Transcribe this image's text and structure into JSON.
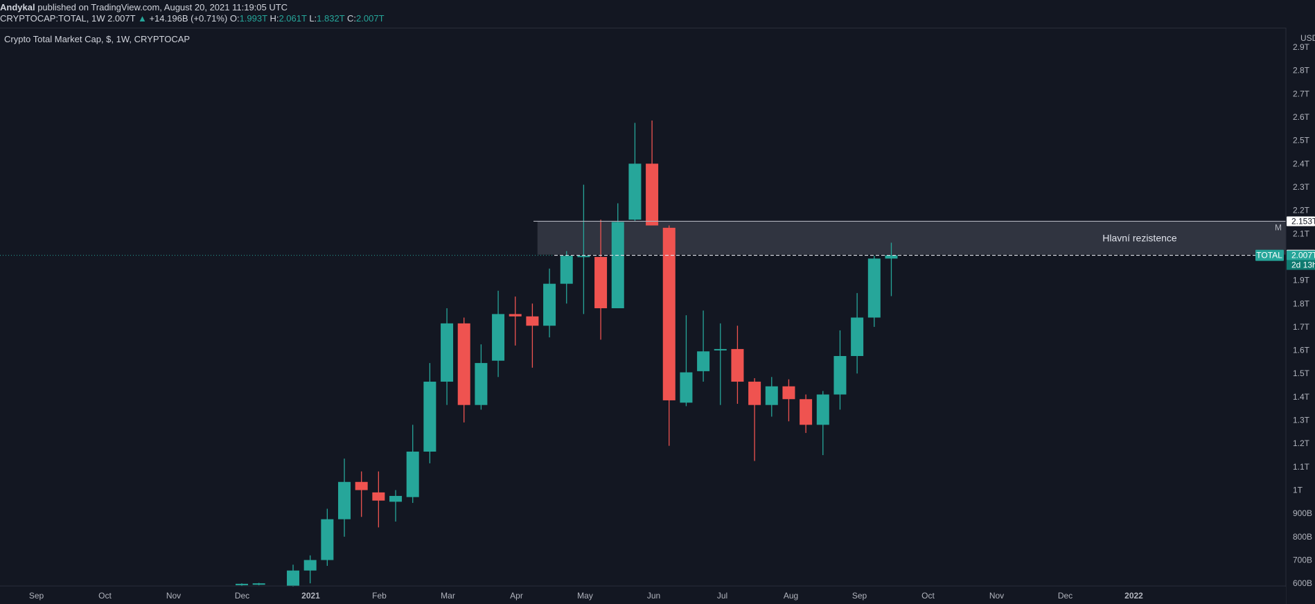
{
  "header": {
    "author": "Andykal",
    "published_text": "published on TradingView.com, August 20, 2021 11:19:05 UTC",
    "symbol": "CRYPTOCAP:TOTAL, 1W",
    "last_price": "2.007T",
    "change_arrow": "▲",
    "change": "+14.196B (+0.71%)",
    "o_label": "O:",
    "o_value": "1.993T",
    "h_label": "H:",
    "h_value": "2.061T",
    "l_label": "L:",
    "l_value": "1.832T",
    "c_label": "C:",
    "c_value": "2.007T"
  },
  "chart_data": {
    "type": "candlestick",
    "title": "Crypto Total Market Cap, $, 1W, CRYPTOCAP",
    "currency": "USD",
    "x_ticks": [
      "Sep",
      "Oct",
      "Nov",
      "Dec",
      "2021",
      "Feb",
      "Mar",
      "Apr",
      "May",
      "Jun",
      "Jul",
      "Aug",
      "Sep",
      "Oct",
      "Nov",
      "Dec",
      "2022"
    ],
    "y_ticks": [
      "2.9T",
      "2.8T",
      "2.7T",
      "2.6T",
      "2.5T",
      "2.4T",
      "2.3T",
      "2.2T",
      "2.1T",
      "1.9T",
      "1.8T",
      "1.7T",
      "1.6T",
      "1.5T",
      "1.4T",
      "1.3T",
      "1.2T",
      "1.1T",
      "1T",
      "900B",
      "800B",
      "700B",
      "600B"
    ],
    "y_tick_values": [
      2.9,
      2.8,
      2.7,
      2.6,
      2.5,
      2.4,
      2.3,
      2.2,
      2.1,
      1.9,
      1.8,
      1.7,
      1.6,
      1.5,
      1.4,
      1.3,
      1.2,
      1.1,
      1.0,
      0.9,
      0.8,
      0.7,
      0.6
    ],
    "y_unit": "trillion USD",
    "ylim": [
      0.58,
      2.92
    ],
    "candles": [
      {
        "week_index": 13,
        "o": 0.595,
        "h": 0.6,
        "l": 0.59,
        "c": 0.598
      },
      {
        "week_index": 14,
        "o": 0.598,
        "h": 0.602,
        "l": 0.592,
        "c": 0.6
      },
      {
        "week_index": 16,
        "o": 0.59,
        "h": 0.68,
        "l": 0.58,
        "c": 0.655
      },
      {
        "week_index": 17,
        "o": 0.655,
        "h": 0.72,
        "l": 0.6,
        "c": 0.7
      },
      {
        "week_index": 18,
        "o": 0.7,
        "h": 0.92,
        "l": 0.675,
        "c": 0.875
      },
      {
        "week_index": 19,
        "o": 0.875,
        "h": 1.135,
        "l": 0.8,
        "c": 1.035
      },
      {
        "week_index": 20,
        "o": 1.035,
        "h": 1.08,
        "l": 0.885,
        "c": 1.0
      },
      {
        "week_index": 21,
        "o": 0.99,
        "h": 1.08,
        "l": 0.84,
        "c": 0.955
      },
      {
        "week_index": 22,
        "o": 0.95,
        "h": 1.0,
        "l": 0.865,
        "c": 0.975
      },
      {
        "week_index": 23,
        "o": 0.97,
        "h": 1.28,
        "l": 0.945,
        "c": 1.165
      },
      {
        "week_index": 24,
        "o": 1.165,
        "h": 1.545,
        "l": 1.115,
        "c": 1.465
      },
      {
        "week_index": 25,
        "o": 1.465,
        "h": 1.78,
        "l": 1.365,
        "c": 1.715
      },
      {
        "week_index": 26,
        "o": 1.715,
        "h": 1.74,
        "l": 1.29,
        "c": 1.365
      },
      {
        "week_index": 27,
        "o": 1.365,
        "h": 1.625,
        "l": 1.345,
        "c": 1.545
      },
      {
        "week_index": 28,
        "o": 1.555,
        "h": 1.855,
        "l": 1.485,
        "c": 1.755
      },
      {
        "week_index": 29,
        "o": 1.755,
        "h": 1.83,
        "l": 1.62,
        "c": 1.745
      },
      {
        "week_index": 30,
        "o": 1.745,
        "h": 1.8,
        "l": 1.525,
        "c": 1.705
      },
      {
        "week_index": 31,
        "o": 1.705,
        "h": 1.95,
        "l": 1.655,
        "c": 1.885
      },
      {
        "week_index": 32,
        "o": 1.885,
        "h": 2.025,
        "l": 1.8,
        "c": 2.005
      },
      {
        "week_index": 33,
        "o": 2.005,
        "h": 2.31,
        "l": 1.755,
        "c": 2.005
      },
      {
        "week_index": 34,
        "o": 2.0,
        "h": 2.16,
        "l": 1.645,
        "c": 1.78
      },
      {
        "week_index": 35,
        "o": 1.78,
        "h": 2.23,
        "l": 1.78,
        "c": 2.15
      },
      {
        "week_index": 36,
        "o": 2.16,
        "h": 2.575,
        "l": 2.155,
        "c": 2.4
      },
      {
        "week_index": 37,
        "o": 2.4,
        "h": 2.585,
        "l": 2.135,
        "c": 2.135
      },
      {
        "week_index": 38,
        "o": 2.125,
        "h": 2.135,
        "l": 1.19,
        "c": 1.385
      },
      {
        "week_index": 39,
        "o": 1.375,
        "h": 1.75,
        "l": 1.36,
        "c": 1.505
      },
      {
        "week_index": 40,
        "o": 1.51,
        "h": 1.77,
        "l": 1.465,
        "c": 1.595
      },
      {
        "week_index": 41,
        "o": 1.605,
        "h": 1.715,
        "l": 1.365,
        "c": 1.605
      },
      {
        "week_index": 42,
        "o": 1.605,
        "h": 1.705,
        "l": 1.37,
        "c": 1.465
      },
      {
        "week_index": 43,
        "o": 1.465,
        "h": 1.48,
        "l": 1.125,
        "c": 1.365
      },
      {
        "week_index": 44,
        "o": 1.365,
        "h": 1.485,
        "l": 1.315,
        "c": 1.445
      },
      {
        "week_index": 45,
        "o": 1.445,
        "h": 1.475,
        "l": 1.295,
        "c": 1.39
      },
      {
        "week_index": 46,
        "o": 1.39,
        "h": 1.41,
        "l": 1.245,
        "c": 1.28
      },
      {
        "week_index": 47,
        "o": 1.28,
        "h": 1.425,
        "l": 1.15,
        "c": 1.41
      },
      {
        "week_index": 48,
        "o": 1.41,
        "h": 1.685,
        "l": 1.345,
        "c": 1.575
      },
      {
        "week_index": 49,
        "o": 1.575,
        "h": 1.845,
        "l": 1.5,
        "c": 1.74
      },
      {
        "week_index": 50,
        "o": 1.74,
        "h": 2.005,
        "l": 1.7,
        "c": 1.993
      },
      {
        "week_index": 51,
        "o": 1.993,
        "h": 2.061,
        "l": 1.832,
        "c": 2.007
      }
    ],
    "resistance_zone": {
      "label": "Hlavní rezistence",
      "top": 2.153,
      "bottom": 2.01,
      "start_week_index": 32
    },
    "top_line_value": 2.153,
    "top_line_label": "M",
    "current_value": 2.007,
    "price_tags": [
      {
        "text": "2.153T",
        "value": 2.153,
        "style": "white"
      },
      {
        "text": "2.01T",
        "value": 2.01,
        "style": "white"
      },
      {
        "text": "2.007T",
        "value": 2.007,
        "style": "green"
      }
    ],
    "series_tag": "TOTAL",
    "countdown": "2d 13h",
    "grid": false
  },
  "colors": {
    "background": "#131722",
    "up": "#26a69a",
    "down": "#ef5350",
    "text": "#b2b5be",
    "zone_fill": "#363a45"
  }
}
